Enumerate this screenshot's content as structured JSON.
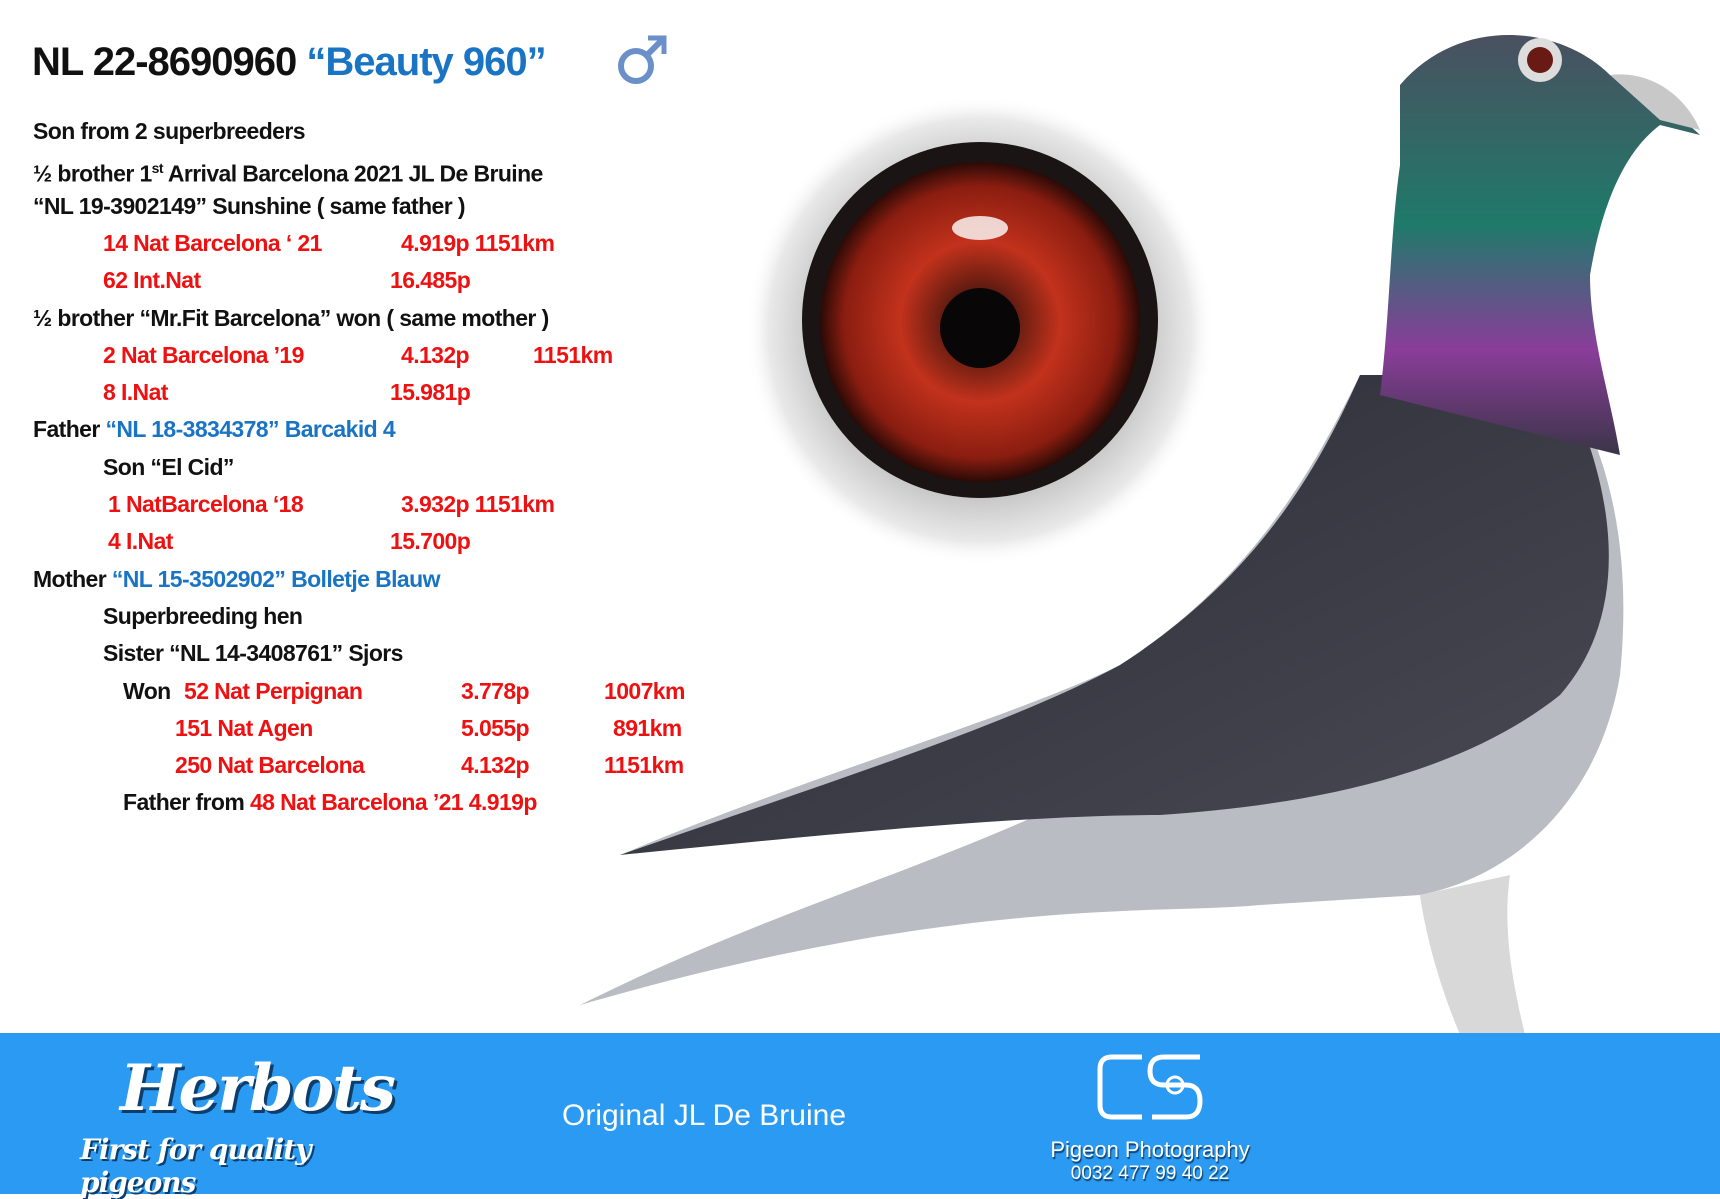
{
  "title": {
    "ring": "NL 22-8690960",
    "name": "“Beauty 960”",
    "sex_icon": "male-symbol-icon"
  },
  "lines": [
    {
      "parts": [
        {
          "text": "Son from 2 superbreeders",
          "color": "black"
        }
      ]
    },
    {
      "parts": [
        {
          "text": "½ brother 1",
          "color": "black"
        },
        {
          "text": "st",
          "color": "black",
          "sup": true
        },
        {
          "text": " Arrival Barcelona 2021 JL De Bruine",
          "color": "black"
        }
      ]
    },
    {
      "parts": [
        {
          "text": "“NL 19-3902149” Sunshine ( same father )",
          "color": "black"
        }
      ]
    },
    {
      "parts": [
        {
          "text": "14 Nat  Barcelona ‘ 21",
          "color": "red"
        },
        {
          "text": "4.919p 1151km",
          "color": "red"
        }
      ]
    },
    {
      "parts": [
        {
          "text": "62 Int.Nat",
          "color": "red"
        },
        {
          "text": "16.485p",
          "color": "red"
        }
      ]
    },
    {
      "parts": [
        {
          "text": "½ brother  “Mr.Fit Barcelona” won ( same mother )",
          "color": "black"
        }
      ]
    },
    {
      "parts": [
        {
          "text": "2 Nat Barcelona ’19",
          "color": "red"
        },
        {
          "text": "4.132p",
          "color": "red"
        },
        {
          "text": "1151km",
          "color": "red"
        }
      ]
    },
    {
      "parts": [
        {
          "text": "8 I.Nat",
          "color": "red"
        },
        {
          "text": "15.981p",
          "color": "red"
        }
      ]
    },
    {
      "parts": [
        {
          "text": "Father ",
          "color": "black"
        },
        {
          "text": "“NL 18-3834378” Barcakid 4",
          "color": "blue"
        }
      ]
    },
    {
      "parts": [
        {
          "text": "Son “El Cid”",
          "color": "black"
        }
      ]
    },
    {
      "parts": [
        {
          "text": "1 NatBarcelona ‘18",
          "color": "red"
        },
        {
          "text": "3.932p 1151km",
          "color": "red"
        }
      ]
    },
    {
      "parts": [
        {
          "text": "4 I.Nat",
          "color": "red"
        },
        {
          "text": "15.700p",
          "color": "red"
        }
      ]
    },
    {
      "parts": [
        {
          "text": "Mother ",
          "color": "black"
        },
        {
          "text": "“NL 15-3502902” Bolletje Blauw",
          "color": "blue"
        }
      ]
    },
    {
      "parts": [
        {
          "text": "Superbreeding hen",
          "color": "black"
        }
      ]
    },
    {
      "parts": [
        {
          "text": "Sister “NL 14-3408761” Sjors",
          "color": "black"
        }
      ]
    },
    {
      "parts": [
        {
          "text": "Won ",
          "color": "black"
        },
        {
          "text": "52 Nat Perpignan",
          "color": "red"
        },
        {
          "text": "3.778p",
          "color": "red"
        },
        {
          "text": "1007km",
          "color": "red"
        }
      ]
    },
    {
      "parts": [
        {
          "text": "151 Nat Agen",
          "color": "red"
        },
        {
          "text": "5.055p",
          "color": "red"
        },
        {
          "text": "891km",
          "color": "red"
        }
      ]
    },
    {
      "parts": [
        {
          "text": "250 Nat Barcelona",
          "color": "red"
        },
        {
          "text": "4.132p",
          "color": "red"
        },
        {
          "text": "1151km",
          "color": "red"
        }
      ]
    },
    {
      "parts": [
        {
          "text": "Father from ",
          "color": "black"
        },
        {
          "text": "48 Nat Barcelona ’21 4.919p",
          "color": "red"
        }
      ]
    }
  ],
  "footer": {
    "background": "#2b9af2",
    "brand_logo": "Herbots",
    "brand_tagline": "First for quality pigeons",
    "center_text": "Original JL De Bruine",
    "photographer_logo": "CS",
    "photographer_label": "Pigeon Photography",
    "photographer_phone": "0032 477 99 40 22"
  },
  "colors": {
    "red": "#ee1111",
    "blue": "#1a74c4",
    "text": "#111111"
  }
}
